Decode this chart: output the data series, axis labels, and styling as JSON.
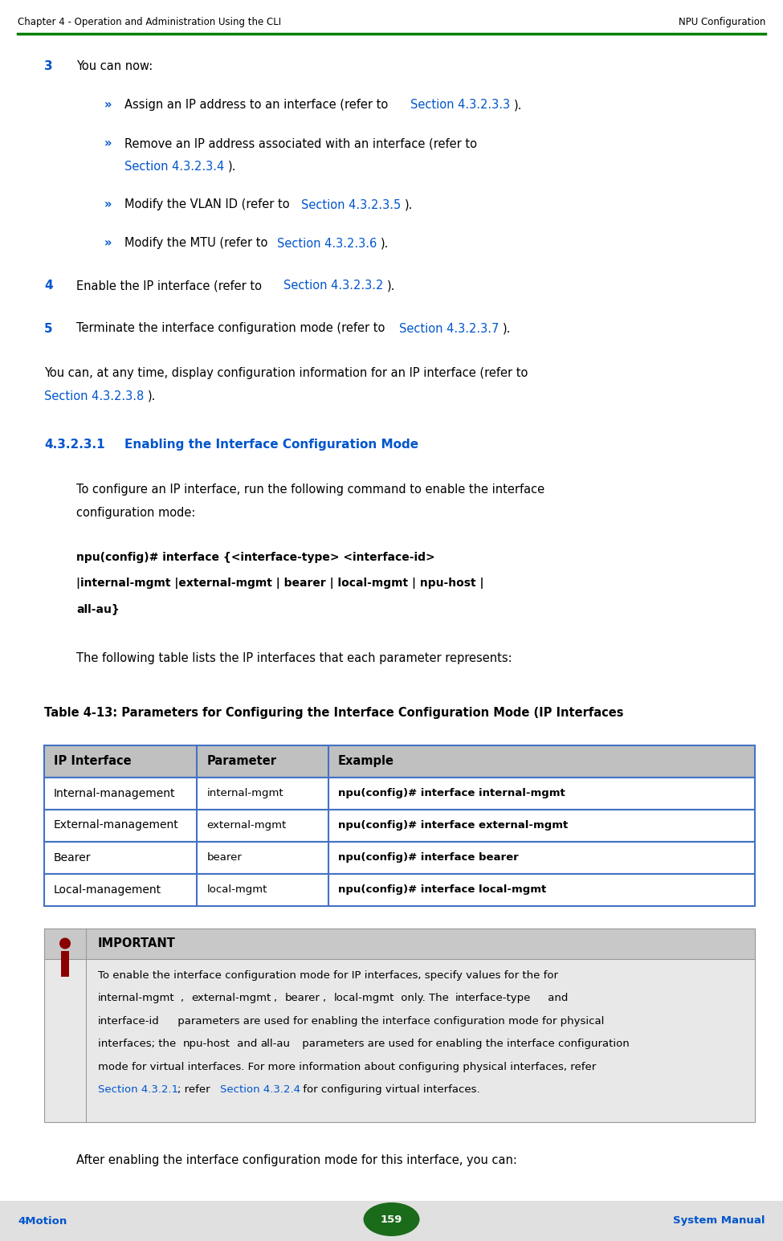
{
  "header_left": "Chapter 4 - Operation and Administration Using the CLI",
  "header_right": "NPU Configuration",
  "footer_left": "4Motion",
  "footer_center": "159",
  "footer_right": "System Manual",
  "header_line_color": "#008000",
  "footer_bg_color": "#e0e0e0",
  "page_bg": "#ffffff",
  "blue_color": "#0055cc",
  "link_color": "#0055cc",
  "text_color": "#000000",
  "table_header_bg": "#c0c0c0",
  "table_border_color": "#4472c4",
  "important_bg": "#d8d8d8",
  "important_header_bg": "#b0b0b0",
  "important_title": "IMPORTANT",
  "after_important": "After enabling the interface configuration mode for this interface, you can:"
}
